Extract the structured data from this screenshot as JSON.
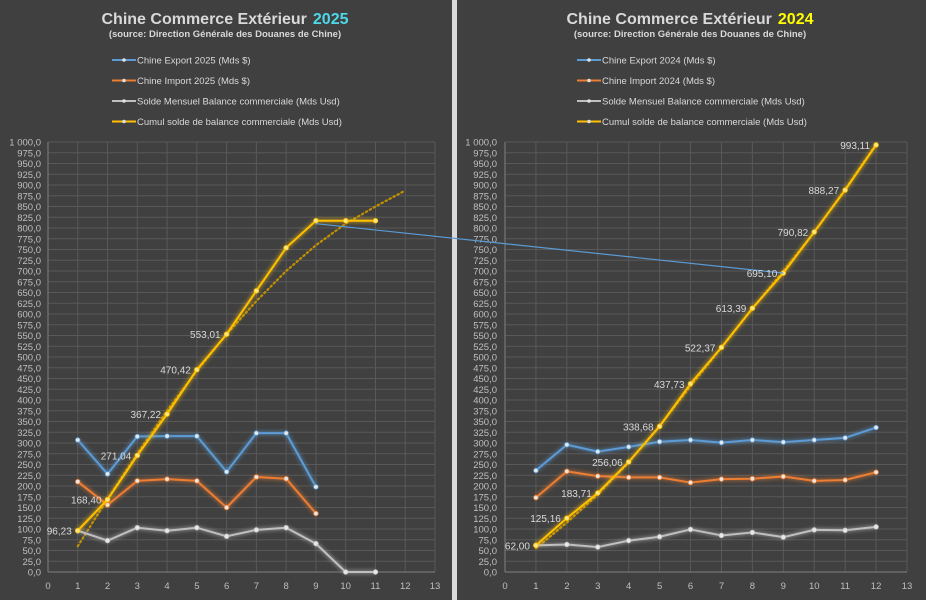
{
  "chart_data": [
    {
      "type": "line",
      "title": "Chine Commerce Extérieur",
      "title_year": "2025",
      "title_year_color": "#4dd9e8",
      "subtitle": "(source: Direction Générale des Douanes  de Chine)",
      "xlabel": "",
      "ylabel": "",
      "xlim": [
        0,
        13
      ],
      "ylim": [
        0,
        1000
      ],
      "x_ticks": [
        "0",
        "1",
        "2",
        "3",
        "4",
        "5",
        "6",
        "7",
        "8",
        "9",
        "10",
        "11",
        "12",
        "13"
      ],
      "y_ticks": [
        "0,0",
        "25,0",
        "50,0",
        "75,0",
        "100,0",
        "125,0",
        "150,0",
        "175,0",
        "200,0",
        "225,0",
        "250,0",
        "275,0",
        "300,0",
        "325,0",
        "350,0",
        "375,0",
        "400,0",
        "425,0",
        "450,0",
        "475,0",
        "500,0",
        "525,0",
        "550,0",
        "575,0",
        "600,0",
        "625,0",
        "650,0",
        "675,0",
        "700,0",
        "725,0",
        "750,0",
        "775,0",
        "800,0",
        "825,0",
        "850,0",
        "875,0",
        "900,0",
        "925,0",
        "950,0",
        "975,0",
        "1 000,0"
      ],
      "grid": true,
      "legend_position": "top",
      "series": [
        {
          "name": "Chine Export 2025  (Mds $)",
          "color": "#5b9bd5",
          "x": [
            1,
            2,
            3,
            4,
            5,
            6,
            7,
            8,
            9
          ],
          "values": [
            307,
            228,
            315,
            316,
            316,
            233,
            323,
            323,
            198
          ]
        },
        {
          "name": "Chine Import 2025 (Mds $)",
          "color": "#ed7d31",
          "x": [
            1,
            2,
            3,
            4,
            5,
            6,
            7,
            8,
            9
          ],
          "values": [
            210,
            156,
            212,
            216,
            212,
            150,
            221,
            217,
            136
          ]
        },
        {
          "name": "Solde Mensuel Balance commerciale (Mds Usd)",
          "color": "#bfbfbf",
          "x": [
            1,
            2,
            3,
            4,
            5,
            6,
            7,
            8,
            9,
            10,
            11
          ],
          "values": [
            96,
            73,
            103,
            96,
            103,
            83,
            98,
            103,
            66,
            0,
            0
          ]
        },
        {
          "name": "Cumul solde de balance commerciale (Mds Usd)",
          "color": "#ffc000",
          "x": [
            1,
            2,
            3,
            4,
            5,
            6,
            7,
            8,
            9,
            10,
            11
          ],
          "values": [
            96.23,
            168.4,
            271.04,
            367.22,
            470.42,
            553.01,
            654,
            754,
            817,
            817,
            817
          ],
          "data_labels": [
            "96,23",
            "168,40",
            "271,04",
            "367,22",
            "470,42",
            "553,01",
            "",
            "",
            "",
            "",
            ""
          ]
        }
      ],
      "trendline": {
        "series": "Cumul solde de balance commerciale (Mds Usd)",
        "style": "dotted",
        "color": "#bf9000",
        "x": [
          1,
          2,
          3,
          4,
          5,
          6,
          7,
          8,
          9,
          10,
          11,
          12
        ],
        "values": [
          60,
          170,
          275,
          375,
          468,
          553,
          630,
          700,
          760,
          810,
          850,
          887
        ]
      }
    },
    {
      "type": "line",
      "title": "Chine Commerce Extérieur",
      "title_year": "2024",
      "title_year_color": "#ffff00",
      "subtitle": "(source: Direction Générale des Douanes  de Chine)",
      "xlabel": "",
      "ylabel": "",
      "xlim": [
        0,
        13
      ],
      "ylim": [
        0,
        1000
      ],
      "x_ticks": [
        "0",
        "1",
        "2",
        "3",
        "4",
        "5",
        "6",
        "7",
        "8",
        "9",
        "10",
        "11",
        "12",
        "13"
      ],
      "y_ticks": [
        "0,0",
        "25,0",
        "50,0",
        "75,0",
        "100,0",
        "125,0",
        "150,0",
        "175,0",
        "200,0",
        "225,0",
        "250,0",
        "275,0",
        "300,0",
        "325,0",
        "350,0",
        "375,0",
        "400,0",
        "425,0",
        "450,0",
        "475,0",
        "500,0",
        "525,0",
        "550,0",
        "575,0",
        "600,0",
        "625,0",
        "650,0",
        "675,0",
        "700,0",
        "725,0",
        "750,0",
        "775,0",
        "800,0",
        "825,0",
        "850,0",
        "875,0",
        "900,0",
        "925,0",
        "950,0",
        "975,0",
        "1 000,0"
      ],
      "grid": true,
      "legend_position": "top",
      "series": [
        {
          "name": "Chine Export 2024  (Mds $)",
          "color": "#5b9bd5",
          "x": [
            1,
            2,
            3,
            4,
            5,
            6,
            7,
            8,
            9,
            10,
            11,
            12
          ],
          "values": [
            236,
            296,
            280,
            291,
            303,
            307,
            301,
            307,
            302,
            307,
            312,
            336
          ]
        },
        {
          "name": "Chine Import 2024 (Mds $)",
          "color": "#ed7d31",
          "x": [
            1,
            2,
            3,
            4,
            5,
            6,
            7,
            8,
            9,
            10,
            11,
            12
          ],
          "values": [
            173,
            234,
            223,
            220,
            220,
            208,
            216,
            217,
            222,
            212,
            214,
            232
          ]
        },
        {
          "name": "Solde Mensuel Balance commerciale (Mds Usd)",
          "color": "#bfbfbf",
          "x": [
            1,
            2,
            3,
            4,
            5,
            6,
            7,
            8,
            9,
            10,
            11,
            12
          ],
          "values": [
            62,
            64,
            58,
            73,
            82,
            99,
            85,
            92,
            81,
            98,
            97,
            105
          ]
        },
        {
          "name": "Cumul solde de balance commerciale (Mds Usd)",
          "color": "#ffc000",
          "x": [
            1,
            2,
            3,
            4,
            5,
            6,
            7,
            8,
            9,
            10,
            11,
            12
          ],
          "values": [
            62.0,
            125.16,
            183.71,
            256.06,
            338.68,
            437.73,
            522.37,
            613.39,
            695.1,
            790.82,
            888.27,
            993.11
          ],
          "data_labels": [
            "62,00",
            "125,16",
            "183,71",
            "256,06",
            "338,68",
            "437,73",
            "522,37",
            "613,39",
            "695,10",
            "790,82",
            "888,27",
            "993,11"
          ]
        }
      ],
      "trendline": {
        "series": "Cumul solde de balance commerciale (Mds Usd)",
        "style": "dotted",
        "color": "#bf9000",
        "x": [
          1,
          2,
          3,
          4,
          5,
          6,
          7,
          8,
          9,
          10,
          11,
          12
        ],
        "values": [
          55,
          115,
          180,
          255,
          340,
          432,
          522,
          612,
          700,
          790,
          890,
          995
        ]
      }
    }
  ],
  "connector": {
    "description": "comparison line from 2025 month 9 cumul to 2024 month 9 cumul",
    "color": "#5b9bd5",
    "from": {
      "chart": 0,
      "x": 9,
      "value": 810
    },
    "to": {
      "chart": 1,
      "x": 9,
      "value": 695.1
    }
  }
}
